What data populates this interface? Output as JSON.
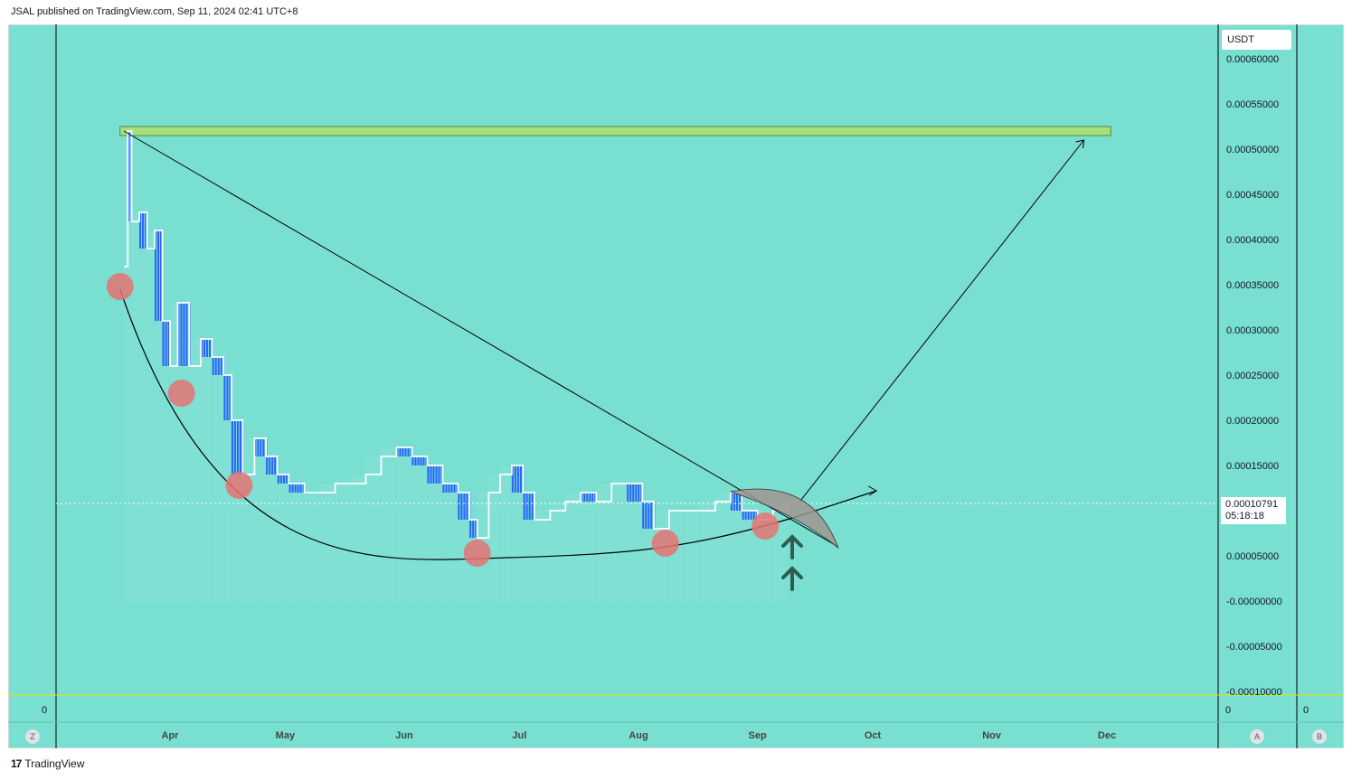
{
  "header": {
    "publish_info": "JSAL published on TradingView.com, Sep 11, 2024 02:41 UTC+8"
  },
  "footer": {
    "brand": "TradingView",
    "logo_glyph": "17"
  },
  "price_axis": {
    "currency": "USDT",
    "ticks": [
      "0.00060000",
      "0.00055000",
      "0.00050000",
      "0.00045000",
      "0.00040000",
      "0.00035000",
      "0.00030000",
      "0.00025000",
      "0.00020000",
      "0.00015000",
      "0.00010791",
      "0.00005000",
      "-0.00000000",
      "-0.00005000",
      "-0.00010000"
    ],
    "last_price": "0.00010791",
    "countdown": "05:18:18"
  },
  "time_axis": {
    "months": [
      "Apr",
      "May",
      "Jun",
      "Jul",
      "Aug",
      "Sep",
      "Oct",
      "Nov",
      "Dec"
    ]
  },
  "pane_labels": {
    "left_zero": "0",
    "right_zero": "0",
    "far_right_zero": "0"
  },
  "buttons": {
    "z": "Z",
    "a": "A",
    "b": "B"
  },
  "colors": {
    "background": "#79dfd1",
    "candle_white": "#ffffff",
    "candle_blue": "#2962ff",
    "marker": "#e57373",
    "arrow": "#2e5e4e",
    "zone": "#a5e07a"
  },
  "chart_data": {
    "type": "line",
    "y_range": [
      -0.0001,
      0.0006
    ],
    "x_range": [
      "Mar 19",
      "Dec 20"
    ],
    "series": [
      {
        "values": [
          [
            "Mar 20",
            0.00037
          ],
          [
            "Mar 21",
            0.00052
          ],
          [
            "Mar 22",
            0.00042
          ],
          [
            "Mar 24",
            0.00043
          ],
          [
            "Mar 26",
            0.00039
          ],
          [
            "Mar 28",
            0.00041
          ],
          [
            "Mar 30",
            0.00031
          ],
          [
            "Apr 1",
            0.00026
          ],
          [
            "Apr 3",
            0.00033
          ],
          [
            "Apr 6",
            0.00026
          ],
          [
            "Apr 9",
            0.00029
          ],
          [
            "Apr 12",
            0.00027
          ],
          [
            "Apr 15",
            0.00025
          ],
          [
            "Apr 17",
            0.0002
          ],
          [
            "Apr 20",
            0.00014
          ],
          [
            "Apr 23",
            0.00018
          ],
          [
            "Apr 26",
            0.00016
          ],
          [
            "Apr 29",
            0.00014
          ],
          [
            "May 2",
            0.00013
          ],
          [
            "May 6",
            0.00012
          ],
          [
            "May 10",
            0.00012
          ],
          [
            "May 14",
            0.00013
          ],
          [
            "May 18",
            0.00013
          ],
          [
            "May 22",
            0.00014
          ],
          [
            "May 26",
            0.00016
          ],
          [
            "May 30",
            0.00017
          ],
          [
            "Jun 3",
            0.00016
          ],
          [
            "Jun 7",
            0.00015
          ],
          [
            "Jun 11",
            0.00013
          ],
          [
            "Jun 15",
            0.00012
          ],
          [
            "Jun 18",
            9e-05
          ],
          [
            "Jun 20",
            7e-05
          ],
          [
            "Jun 23",
            0.00012
          ],
          [
            "Jun 26",
            0.00014
          ],
          [
            "Jun 29",
            0.00015
          ],
          [
            "Jul 2",
            0.00012
          ],
          [
            "Jul 5",
            9e-05
          ],
          [
            "Jul 9",
            0.0001
          ],
          [
            "Jul 13",
            0.00011
          ],
          [
            "Jul 17",
            0.00012
          ],
          [
            "Jul 21",
            0.00011
          ],
          [
            "Jul 25",
            0.00013
          ],
          [
            "Jul 29",
            0.00013
          ],
          [
            "Aug 2",
            0.00011
          ],
          [
            "Aug 5",
            8e-05
          ],
          [
            "Aug 9",
            0.0001
          ],
          [
            "Aug 13",
            0.0001
          ],
          [
            "Aug 17",
            0.0001
          ],
          [
            "Aug 21",
            0.00011
          ],
          [
            "Aug 25",
            0.00012
          ],
          [
            "Aug 28",
            0.0001
          ],
          [
            "Sep 1",
            9e-05
          ],
          [
            "Sep 5",
            0.0001
          ],
          [
            "Sep 9",
            0.00011
          ]
        ]
      }
    ],
    "drawings": {
      "resistance_zone": [
        0.000515,
        0.000525
      ],
      "trendline_from": [
        "Mar 20",
        0.00052
      ],
      "trendline_to": [
        "Sep 22",
        6e-05
      ],
      "curve_bottom": [
        "Jun 28",
        4.8e-05
      ],
      "target": [
        "Nov 25",
        0.00051
      ],
      "circle_markers": [
        [
          "Mar 19",
          0.000348
        ],
        [
          "Apr 4",
          0.00023
        ],
        [
          "Apr 19",
          0.000128
        ],
        [
          "Jun 20",
          5.3e-05
        ],
        [
          "Aug 8",
          6.4e-05
        ],
        [
          "Sep 3",
          8.3e-05
        ]
      ]
    }
  }
}
